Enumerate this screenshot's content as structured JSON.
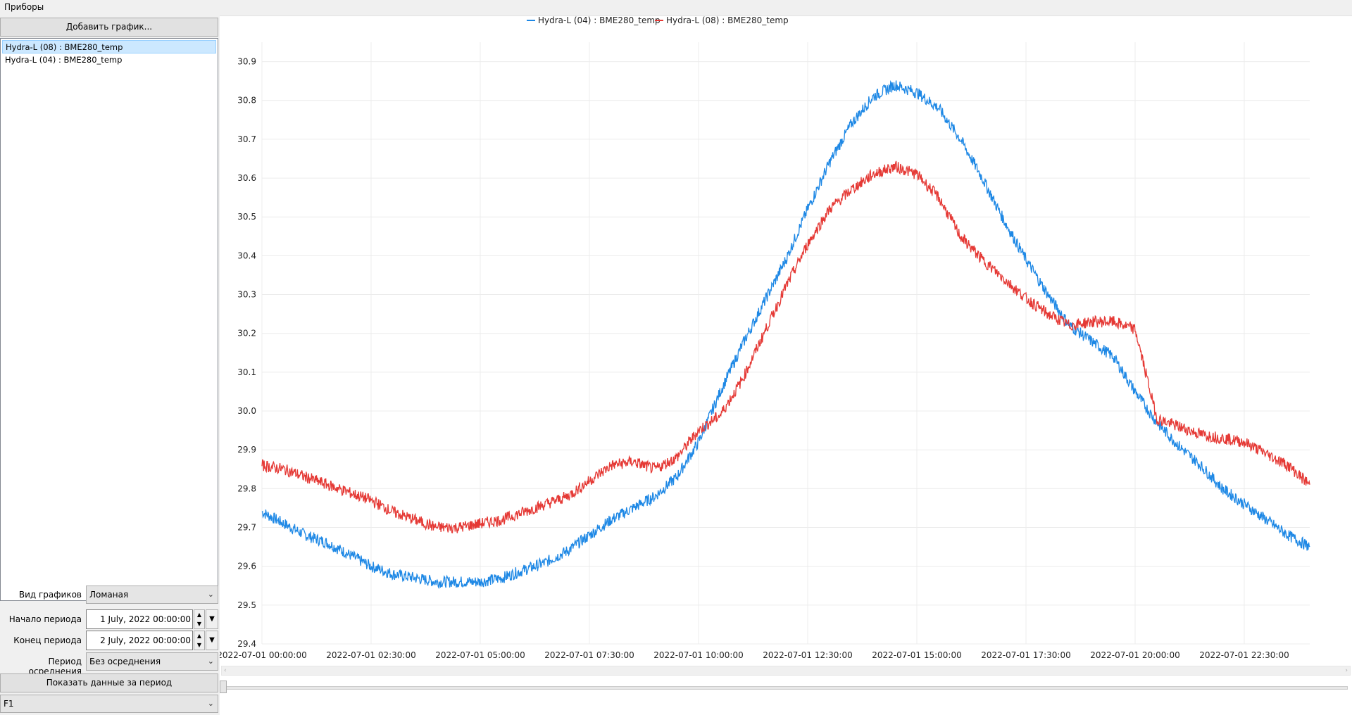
{
  "menu": {
    "devices": "Приборы"
  },
  "left_panel": {
    "add_chart_button": "Добавить график...",
    "series_list": [
      "Hydra-L (08) : BME280_temp",
      "Hydra-L (04) : BME280_temp"
    ],
    "chart_type_label": "Вид графиков",
    "chart_type_value": "Ломаная",
    "start_label": "Начало периода",
    "start_value": "1 July, 2022 00:00:00",
    "end_label": "Конец периода",
    "end_value": "2 July, 2022 00:00:00",
    "averaging_label": "Период осреднения",
    "averaging_value": "Без осреднения",
    "show_button": "Показать данные за период",
    "bottom_combo_value": "F1"
  },
  "chart_data": {
    "type": "line",
    "title": "",
    "xlabel": "",
    "ylabel": "",
    "legend_position": "top-center",
    "grid": true,
    "ylim": [
      29.4,
      30.95
    ],
    "yticks": [
      "29.4",
      "29.5",
      "29.6",
      "29.7",
      "29.8",
      "29.9",
      "30.0",
      "30.1",
      "30.2",
      "30.3",
      "30.4",
      "30.5",
      "30.6",
      "30.7",
      "30.8",
      "30.9"
    ],
    "xticks": [
      "2022-07-01 00:00:00",
      "2022-07-01 02:30:00",
      "2022-07-01 05:00:00",
      "2022-07-01 07:30:00",
      "2022-07-01 10:00:00",
      "2022-07-01 12:30:00",
      "2022-07-01 15:00:00",
      "2022-07-01 17:30:00",
      "2022-07-01 20:00:00",
      "2022-07-01 22:30:00"
    ],
    "x_unit": "hours since 2022-07-01 00:00:00",
    "x_range": [
      0,
      24
    ],
    "series": [
      {
        "name": "Hydra-L (04) : BME280_temp",
        "color": "#1e88e5",
        "x": [
          0,
          0.5,
          1,
          1.5,
          2,
          2.5,
          3,
          3.5,
          4,
          4.5,
          5,
          5.5,
          6,
          6.5,
          7,
          7.5,
          8,
          8.5,
          9,
          9.5,
          10,
          10.5,
          11,
          11.5,
          12,
          12.5,
          13,
          13.5,
          14,
          14.5,
          15,
          15.5,
          16,
          16.5,
          17,
          17.5,
          18,
          18.5,
          19,
          19.5,
          20,
          20.5,
          21,
          21.5,
          22,
          22.5,
          23,
          23.5,
          24
        ],
        "values": [
          29.74,
          29.71,
          29.68,
          29.66,
          29.63,
          29.6,
          29.58,
          29.57,
          29.56,
          29.56,
          29.56,
          29.57,
          29.59,
          29.61,
          29.64,
          29.68,
          29.72,
          29.75,
          29.78,
          29.83,
          29.92,
          30.05,
          30.17,
          30.28,
          30.39,
          30.52,
          30.64,
          30.74,
          30.81,
          30.84,
          30.82,
          30.78,
          30.7,
          30.6,
          30.49,
          30.39,
          30.3,
          30.22,
          30.18,
          30.14,
          30.05,
          29.97,
          29.91,
          29.86,
          29.8,
          29.76,
          29.72,
          29.68,
          29.65
        ]
      },
      {
        "name": "Hydra-L (08) : BME280_temp",
        "color": "#e53935",
        "x": [
          0,
          0.5,
          1,
          1.5,
          2,
          2.5,
          3,
          3.5,
          4,
          4.5,
          5,
          5.5,
          6,
          6.5,
          7,
          7.5,
          8,
          8.5,
          9,
          9.5,
          10,
          10.5,
          11,
          11.5,
          12,
          12.5,
          13,
          13.5,
          14,
          14.5,
          15,
          15.5,
          16,
          16.5,
          17,
          17.5,
          18,
          18.5,
          19,
          19.5,
          20,
          20.5,
          21,
          21.5,
          22,
          22.5,
          23,
          23.5,
          24
        ],
        "values": [
          29.86,
          29.85,
          29.83,
          29.81,
          29.79,
          29.77,
          29.74,
          29.72,
          29.7,
          29.7,
          29.71,
          29.72,
          29.74,
          29.76,
          29.78,
          29.82,
          29.86,
          29.87,
          29.85,
          29.88,
          29.95,
          29.99,
          30.08,
          30.2,
          30.32,
          30.43,
          30.52,
          30.57,
          30.61,
          30.63,
          30.61,
          30.55,
          30.45,
          30.39,
          30.34,
          30.29,
          30.25,
          30.22,
          30.23,
          30.23,
          30.21,
          29.98,
          29.96,
          29.94,
          29.93,
          29.92,
          29.89,
          29.86,
          29.81
        ]
      }
    ]
  }
}
